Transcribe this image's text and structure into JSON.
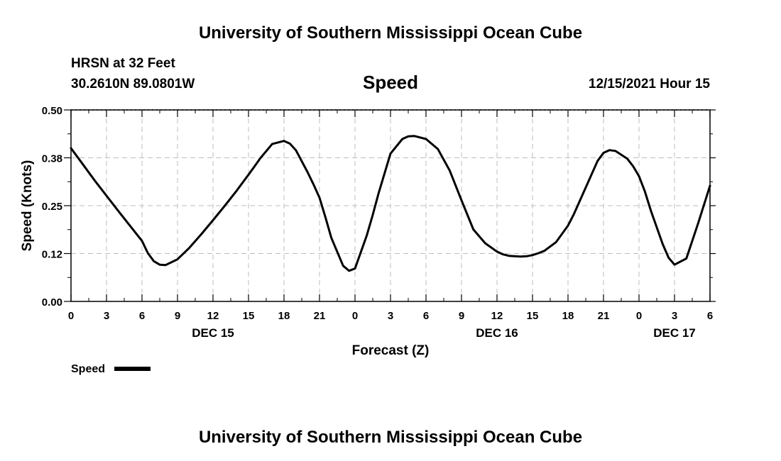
{
  "header": {
    "title_top": "University of Southern Mississippi Ocean Cube",
    "station": "HRSN at 32 Feet",
    "coords": "30.2610N  89.0801W",
    "variable": "Speed",
    "datetime": "12/15/2021 Hour 15"
  },
  "footer": {
    "title_bottom": "University of Southern Mississippi Ocean Cube"
  },
  "legend": {
    "label": "Speed",
    "line_color": "#000000"
  },
  "chart_data": {
    "type": "line",
    "title": "Speed",
    "xlabel": "Forecast (Z)",
    "ylabel": "Speed (Knots)",
    "xlim": [
      0,
      54
    ],
    "ylim": [
      0,
      0.5
    ],
    "grid": true,
    "x_ticks": [
      {
        "x": 0,
        "label": "0"
      },
      {
        "x": 3,
        "label": "3"
      },
      {
        "x": 6,
        "label": "6"
      },
      {
        "x": 9,
        "label": "9"
      },
      {
        "x": 12,
        "label": "12"
      },
      {
        "x": 15,
        "label": "15"
      },
      {
        "x": 18,
        "label": "18"
      },
      {
        "x": 21,
        "label": "21"
      },
      {
        "x": 24,
        "label": "0"
      },
      {
        "x": 27,
        "label": "3"
      },
      {
        "x": 30,
        "label": "6"
      },
      {
        "x": 33,
        "label": "9"
      },
      {
        "x": 36,
        "label": "12"
      },
      {
        "x": 39,
        "label": "15"
      },
      {
        "x": 42,
        "label": "18"
      },
      {
        "x": 45,
        "label": "21"
      },
      {
        "x": 48,
        "label": "0"
      },
      {
        "x": 51,
        "label": "3"
      },
      {
        "x": 54,
        "label": "6"
      }
    ],
    "y_ticks": [
      {
        "y": 0,
        "label": "0.00"
      },
      {
        "y": 0.125,
        "label": "0.12"
      },
      {
        "y": 0.25,
        "label": "0.25"
      },
      {
        "y": 0.375,
        "label": "0.38"
      },
      {
        "y": 0.5,
        "label": "0.50"
      }
    ],
    "day_labels": [
      {
        "x": 12,
        "label": "DEC 15"
      },
      {
        "x": 36,
        "label": "DEC 16"
      },
      {
        "x": 51,
        "label": "DEC 17"
      }
    ],
    "series": [
      {
        "name": "Speed",
        "color": "#000000",
        "x": [
          0,
          1,
          2,
          3,
          4,
          5,
          6,
          6.5,
          7,
          7.5,
          8,
          9,
          10,
          11,
          12,
          13,
          14,
          15,
          15.5,
          16,
          17,
          18,
          18.5,
          19,
          20,
          20.5,
          21,
          21.5,
          22,
          23,
          23.5,
          24,
          25,
          25.5,
          26,
          27,
          28,
          28.5,
          29,
          30,
          31,
          32,
          33,
          34,
          35,
          36,
          36.5,
          37,
          38,
          38.5,
          39,
          39.5,
          40,
          41,
          42,
          42.5,
          43,
          44,
          44.5,
          45,
          45.5,
          46,
          47,
          47.5,
          48,
          48.5,
          49,
          50,
          50.5,
          51,
          52,
          53,
          54
        ],
        "values": [
          0.4,
          0.358,
          0.316,
          0.276,
          0.236,
          0.197,
          0.158,
          0.126,
          0.105,
          0.096,
          0.095,
          0.11,
          0.14,
          0.175,
          0.212,
          0.25,
          0.289,
          0.331,
          0.352,
          0.374,
          0.411,
          0.419,
          0.412,
          0.395,
          0.337,
          0.305,
          0.271,
          0.22,
          0.166,
          0.093,
          0.08,
          0.086,
          0.173,
          0.226,
          0.283,
          0.386,
          0.424,
          0.431,
          0.432,
          0.424,
          0.398,
          0.342,
          0.264,
          0.188,
          0.152,
          0.13,
          0.123,
          0.119,
          0.117,
          0.118,
          0.121,
          0.126,
          0.132,
          0.155,
          0.198,
          0.228,
          0.263,
          0.332,
          0.367,
          0.388,
          0.395,
          0.393,
          0.373,
          0.353,
          0.327,
          0.287,
          0.237,
          0.15,
          0.114,
          0.096,
          0.112,
          0.204,
          0.302
        ]
      }
    ]
  }
}
